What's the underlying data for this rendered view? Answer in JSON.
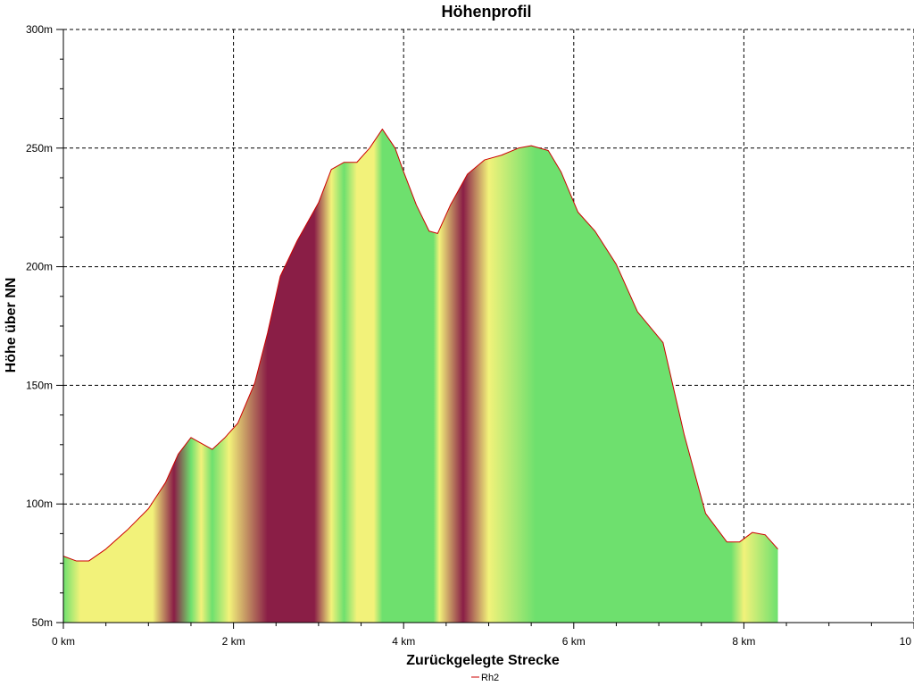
{
  "chart_data": {
    "type": "area",
    "title": "Höhenprofil",
    "xlabel": "Zurückgelegte Strecke",
    "ylabel": "Höhe über NN",
    "xlim": [
      0,
      10
    ],
    "ylim": [
      50,
      300
    ],
    "x_ticks": [
      0,
      2,
      4,
      6,
      8,
      10
    ],
    "x_tick_labels": [
      "0 km",
      "2 km",
      "4 km",
      "6 km",
      "8 km",
      "10 km"
    ],
    "y_ticks": [
      50,
      100,
      150,
      200,
      250,
      300
    ],
    "y_tick_labels": [
      "50m",
      "100m",
      "150m",
      "200m",
      "250m",
      "300m"
    ],
    "grid": true,
    "legend_position": "bottom-center",
    "line_color": "#cc0000",
    "gradient_colors": {
      "green": "#6ee06e",
      "yellow": "#f2f27a",
      "maroon": "#8a1e46"
    },
    "series": [
      {
        "name": "Rh2",
        "x": [
          0,
          0.15,
          0.3,
          0.5,
          0.75,
          1.0,
          1.2,
          1.35,
          1.5,
          1.6,
          1.75,
          1.9,
          2.05,
          2.25,
          2.4,
          2.55,
          2.75,
          3.0,
          3.15,
          3.3,
          3.45,
          3.6,
          3.75,
          3.9,
          4.0,
          4.15,
          4.3,
          4.4,
          4.55,
          4.75,
          4.95,
          5.15,
          5.35,
          5.5,
          5.7,
          5.85,
          6.05,
          6.25,
          6.5,
          6.75,
          7.05,
          7.3,
          7.55,
          7.8,
          7.95,
          8.1,
          8.25,
          8.4
        ],
        "y": [
          78,
          76,
          76,
          81,
          89,
          98,
          109,
          121,
          128,
          126,
          123,
          128,
          134,
          151,
          172,
          196,
          211,
          227,
          241,
          244,
          244,
          250,
          258,
          250,
          240,
          226,
          215,
          214,
          226,
          239,
          245,
          247,
          250,
          251,
          249,
          240,
          223,
          215,
          201,
          181,
          168,
          129,
          96,
          84,
          84,
          88,
          87,
          81
        ]
      }
    ],
    "color_bands": [
      {
        "x": 0.0,
        "c": "green"
      },
      {
        "x": 0.2,
        "c": "yellow"
      },
      {
        "x": 1.05,
        "c": "yellow"
      },
      {
        "x": 1.3,
        "c": "maroon"
      },
      {
        "x": 1.5,
        "c": "green"
      },
      {
        "x": 1.62,
        "c": "yellow"
      },
      {
        "x": 1.75,
        "c": "green"
      },
      {
        "x": 1.95,
        "c": "yellow"
      },
      {
        "x": 2.4,
        "c": "maroon"
      },
      {
        "x": 2.95,
        "c": "maroon"
      },
      {
        "x": 3.15,
        "c": "yellow"
      },
      {
        "x": 3.3,
        "c": "green"
      },
      {
        "x": 3.45,
        "c": "yellow"
      },
      {
        "x": 3.65,
        "c": "yellow"
      },
      {
        "x": 3.75,
        "c": "green"
      },
      {
        "x": 4.35,
        "c": "green"
      },
      {
        "x": 4.42,
        "c": "yellow"
      },
      {
        "x": 4.7,
        "c": "maroon"
      },
      {
        "x": 5.0,
        "c": "yellow"
      },
      {
        "x": 5.55,
        "c": "green"
      },
      {
        "x": 7.85,
        "c": "green"
      },
      {
        "x": 8.0,
        "c": "yellow"
      },
      {
        "x": 8.4,
        "c": "green"
      }
    ]
  }
}
